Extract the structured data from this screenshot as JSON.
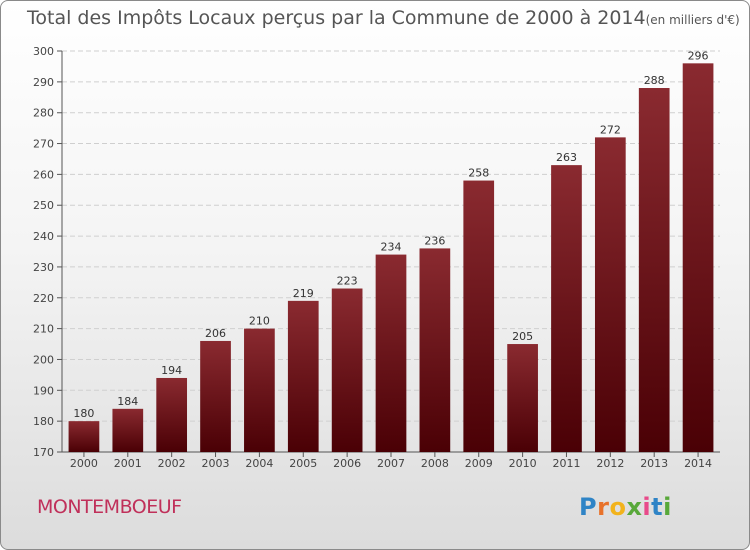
{
  "chart_data": {
    "type": "bar",
    "title": "Total des Impôts Locaux perçus par la Commune de 2000 à 2014",
    "unit_note": "(en milliers d'€)",
    "xlabel": "",
    "ylabel": "",
    "categories": [
      "2000",
      "2001",
      "2002",
      "2003",
      "2004",
      "2005",
      "2006",
      "2007",
      "2008",
      "2009",
      "2010",
      "2011",
      "2012",
      "2013",
      "2014"
    ],
    "values": [
      180,
      184,
      194,
      206,
      210,
      219,
      223,
      234,
      236,
      258,
      205,
      263,
      272,
      288,
      296
    ],
    "ylim": [
      170,
      300
    ],
    "yticks": [
      170,
      180,
      190,
      200,
      210,
      220,
      230,
      240,
      250,
      260,
      270,
      280,
      290,
      300
    ],
    "grid": true,
    "bar_color": "#7a1a1f"
  },
  "commune": "MONTEMBOEUF",
  "logo": [
    "P",
    "r",
    "o",
    "x",
    "i",
    "t",
    "i"
  ]
}
